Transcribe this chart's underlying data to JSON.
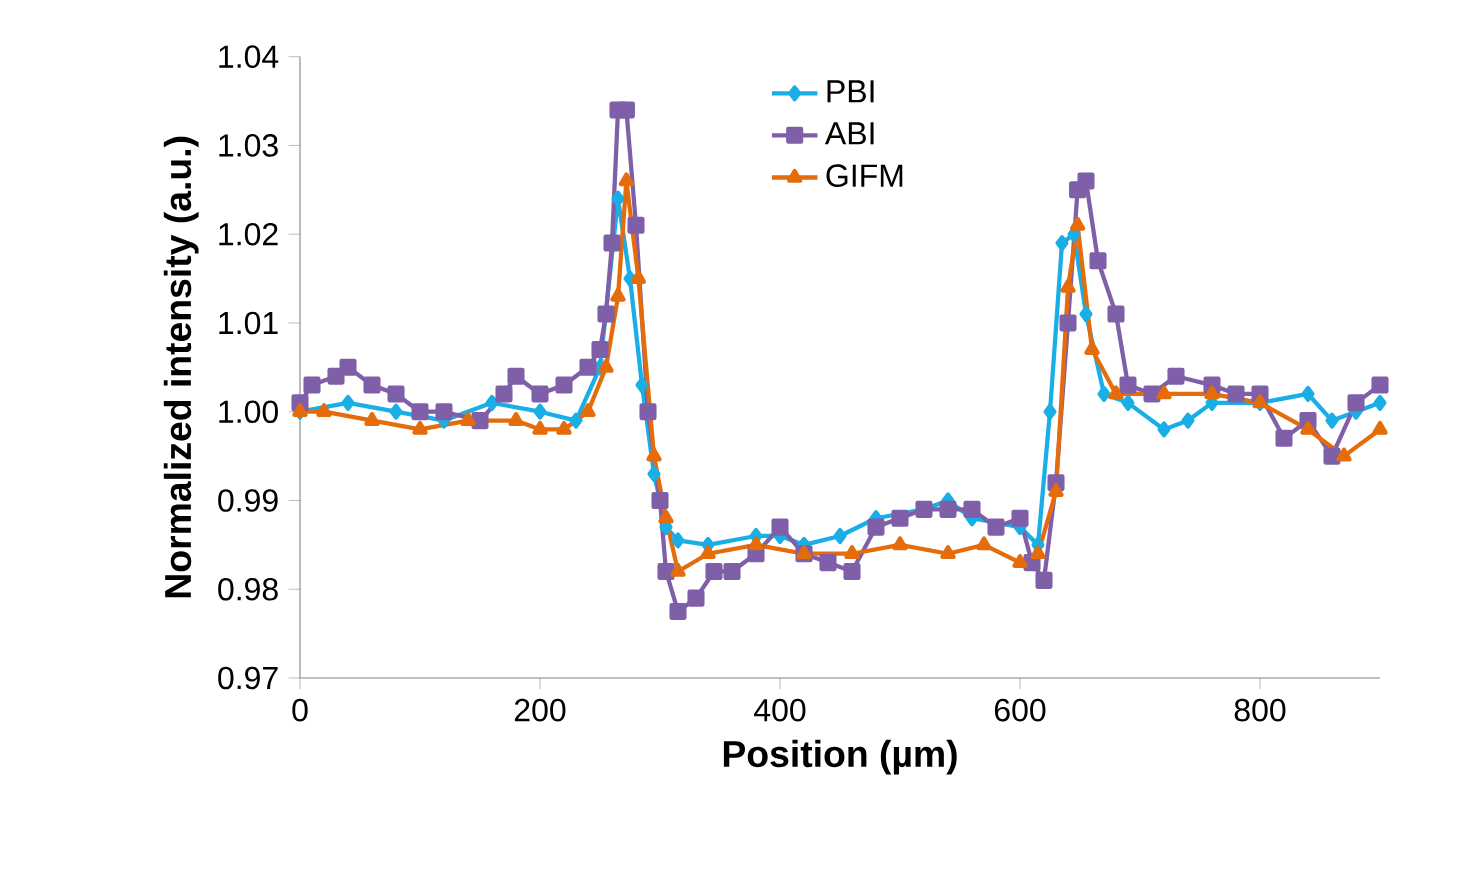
{
  "chart_data": {
    "type": "line",
    "xlabel": "Position (µm)",
    "ylabel": "Normalized intensity (a.u.)",
    "xlim": [
      0,
      900
    ],
    "ylim": [
      0.97,
      1.04
    ],
    "xticks": [
      0,
      200,
      400,
      600,
      800
    ],
    "yticks": [
      {
        "value": 0.97,
        "label": "0.97"
      },
      {
        "value": 0.98,
        "label": "0.98"
      },
      {
        "value": 0.99,
        "label": "0.99"
      },
      {
        "value": 1.0,
        "label": "1.00"
      },
      {
        "value": 1.01,
        "label": "1.01"
      },
      {
        "value": 1.02,
        "label": "1.02"
      },
      {
        "value": 1.03,
        "label": "1.03"
      },
      {
        "value": 1.04,
        "label": "1.04"
      }
    ],
    "grid": false,
    "legend": "top",
    "line_style": "solid",
    "series": [
      {
        "name": "PBI",
        "color": "#1aaee6",
        "marker": "diamond",
        "x": [
          0,
          40,
          80,
          120,
          160,
          200,
          230,
          250,
          265,
          275,
          285,
          295,
          305,
          315,
          340,
          380,
          400,
          420,
          450,
          480,
          520,
          540,
          560,
          600,
          615,
          625,
          635,
          645,
          655,
          670,
          690,
          720,
          740,
          760,
          800,
          840,
          860,
          880,
          900
        ],
        "values": [
          1.0,
          1.001,
          1.0,
          0.999,
          1.001,
          1.0,
          0.999,
          1.005,
          1.024,
          1.015,
          1.003,
          0.993,
          0.987,
          0.9855,
          0.985,
          0.986,
          0.986,
          0.985,
          0.986,
          0.988,
          0.989,
          0.99,
          0.988,
          0.987,
          0.985,
          1.0,
          1.019,
          1.02,
          1.011,
          1.002,
          1.001,
          0.998,
          0.999,
          1.001,
          1.001,
          1.002,
          0.999,
          1.0,
          1.001
        ]
      },
      {
        "name": "ABI",
        "color": "#7e5fa8",
        "marker": "square",
        "x": [
          0,
          10,
          30,
          40,
          60,
          80,
          100,
          120,
          150,
          170,
          180,
          200,
          220,
          240,
          250,
          255,
          260,
          265,
          272,
          280,
          290,
          300,
          305,
          315,
          330,
          345,
          360,
          380,
          400,
          420,
          440,
          460,
          480,
          500,
          520,
          540,
          560,
          580,
          600,
          610,
          620,
          630,
          640,
          648,
          655,
          665,
          680,
          690,
          710,
          730,
          760,
          780,
          800,
          820,
          840,
          860,
          880,
          900
        ],
        "values": [
          1.001,
          1.003,
          1.004,
          1.005,
          1.003,
          1.002,
          1.0,
          1.0,
          0.999,
          1.002,
          1.004,
          1.002,
          1.003,
          1.005,
          1.007,
          1.011,
          1.019,
          1.034,
          1.034,
          1.021,
          1.0,
          0.99,
          0.982,
          0.9775,
          0.979,
          0.982,
          0.982,
          0.984,
          0.987,
          0.984,
          0.983,
          0.982,
          0.987,
          0.988,
          0.989,
          0.989,
          0.989,
          0.987,
          0.988,
          0.983,
          0.981,
          0.992,
          1.01,
          1.025,
          1.026,
          1.017,
          1.011,
          1.003,
          1.002,
          1.004,
          1.003,
          1.002,
          1.002,
          0.997,
          0.999,
          0.995,
          1.001,
          1.003
        ]
      },
      {
        "name": "GIFM",
        "color": "#e46c0a",
        "marker": "triangle",
        "x": [
          0,
          20,
          60,
          100,
          140,
          180,
          200,
          220,
          240,
          255,
          265,
          272,
          282,
          295,
          305,
          315,
          340,
          380,
          420,
          460,
          500,
          540,
          570,
          600,
          615,
          630,
          640,
          648,
          660,
          680,
          720,
          760,
          800,
          840,
          870,
          900
        ],
        "values": [
          1.0,
          1.0,
          0.999,
          0.998,
          0.999,
          0.999,
          0.998,
          0.998,
          1.0,
          1.005,
          1.013,
          1.026,
          1.015,
          0.995,
          0.988,
          0.982,
          0.984,
          0.985,
          0.984,
          0.984,
          0.985,
          0.984,
          0.985,
          0.983,
          0.984,
          0.991,
          1.014,
          1.021,
          1.007,
          1.002,
          1.002,
          1.002,
          1.001,
          0.998,
          0.995,
          0.998
        ]
      }
    ]
  }
}
